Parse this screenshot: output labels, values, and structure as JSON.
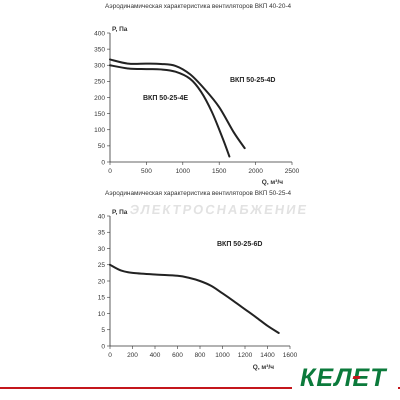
{
  "chart_data": [
    {
      "type": "line",
      "title": "Аэродинамическая характеристика вентиляторов ВКП 40-20-4",
      "ylabel": "P, Па",
      "xlabel": "Q, м³/ч",
      "xlim": [
        0,
        2500
      ],
      "ylim": [
        0,
        400
      ],
      "xticks": [
        0,
        500,
        1000,
        1500,
        2000,
        2500
      ],
      "yticks": [
        0,
        50,
        100,
        150,
        200,
        250,
        300,
        350,
        400
      ],
      "grid": false,
      "series": [
        {
          "name": "ВКП 50-25-4D",
          "x": [
            0,
            250,
            500,
            700,
            900,
            1100,
            1300,
            1500,
            1700,
            1850
          ],
          "y": [
            318,
            305,
            305,
            304,
            298,
            272,
            226,
            170,
            92,
            43
          ]
        },
        {
          "name": "ВКП 50-25-4E",
          "x": [
            0,
            250,
            500,
            700,
            900,
            1100,
            1250,
            1400,
            1550,
            1640
          ],
          "y": [
            300,
            290,
            288,
            287,
            280,
            258,
            218,
            155,
            72,
            17
          ]
        }
      ]
    },
    {
      "type": "line",
      "title": "Аэродинамическая характеристика вентиляторов ВКП 50-25-4",
      "ylabel": "P, Па",
      "xlabel": "Q, м³/ч",
      "xlim": [
        0,
        1600
      ],
      "ylim": [
        0,
        40
      ],
      "xticks": [
        0,
        200,
        400,
        600,
        800,
        1000,
        1200,
        1400,
        1600
      ],
      "yticks": [
        0,
        5,
        10,
        15,
        20,
        25,
        30,
        35,
        40
      ],
      "grid": false,
      "series": [
        {
          "name": "ВКП 50-25-6D",
          "x": [
            0,
            100,
            200,
            400,
            600,
            700,
            800,
            900,
            1000,
            1100,
            1200,
            1300,
            1400,
            1500
          ],
          "y": [
            25,
            23.2,
            22.5,
            22,
            21.6,
            21,
            20,
            18.5,
            16.2,
            13.8,
            11.3,
            8.8,
            6.2,
            4
          ]
        }
      ]
    }
  ],
  "watermark": "ЭЛЕКТРОСНАБЖЕНИЕ",
  "logo": "КЕЛЕТ",
  "colors": {
    "curve": "#222222",
    "axis": "#333333",
    "logo_green": "#0b7a3b",
    "logo_red": "#c4161c"
  }
}
